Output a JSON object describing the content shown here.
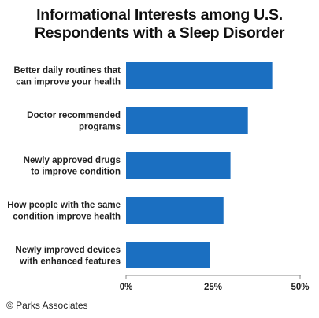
{
  "chart_data": {
    "type": "bar",
    "orientation": "horizontal",
    "title_lines": [
      "Informational Interests among U.S.",
      "Respondents with a Sleep Disorder"
    ],
    "categories": [
      [
        "Better daily routines that",
        "can improve your health"
      ],
      [
        "Doctor recommended",
        "programs"
      ],
      [
        "Newly approved drugs",
        "to improve condition"
      ],
      [
        "How people with the same",
        "condition improve health"
      ],
      [
        "Newly improved devices",
        "with enhanced features"
      ]
    ],
    "values": [
      42,
      35,
      30,
      28,
      24
    ],
    "xlim": [
      0,
      50
    ],
    "ticks": [
      0,
      25,
      50
    ],
    "tick_labels": [
      "0%",
      "25%",
      "50%"
    ],
    "bar_color": "#1b6fc1",
    "grid": false,
    "legend": "none"
  },
  "footer": {
    "credit": "© Parks Associates"
  }
}
